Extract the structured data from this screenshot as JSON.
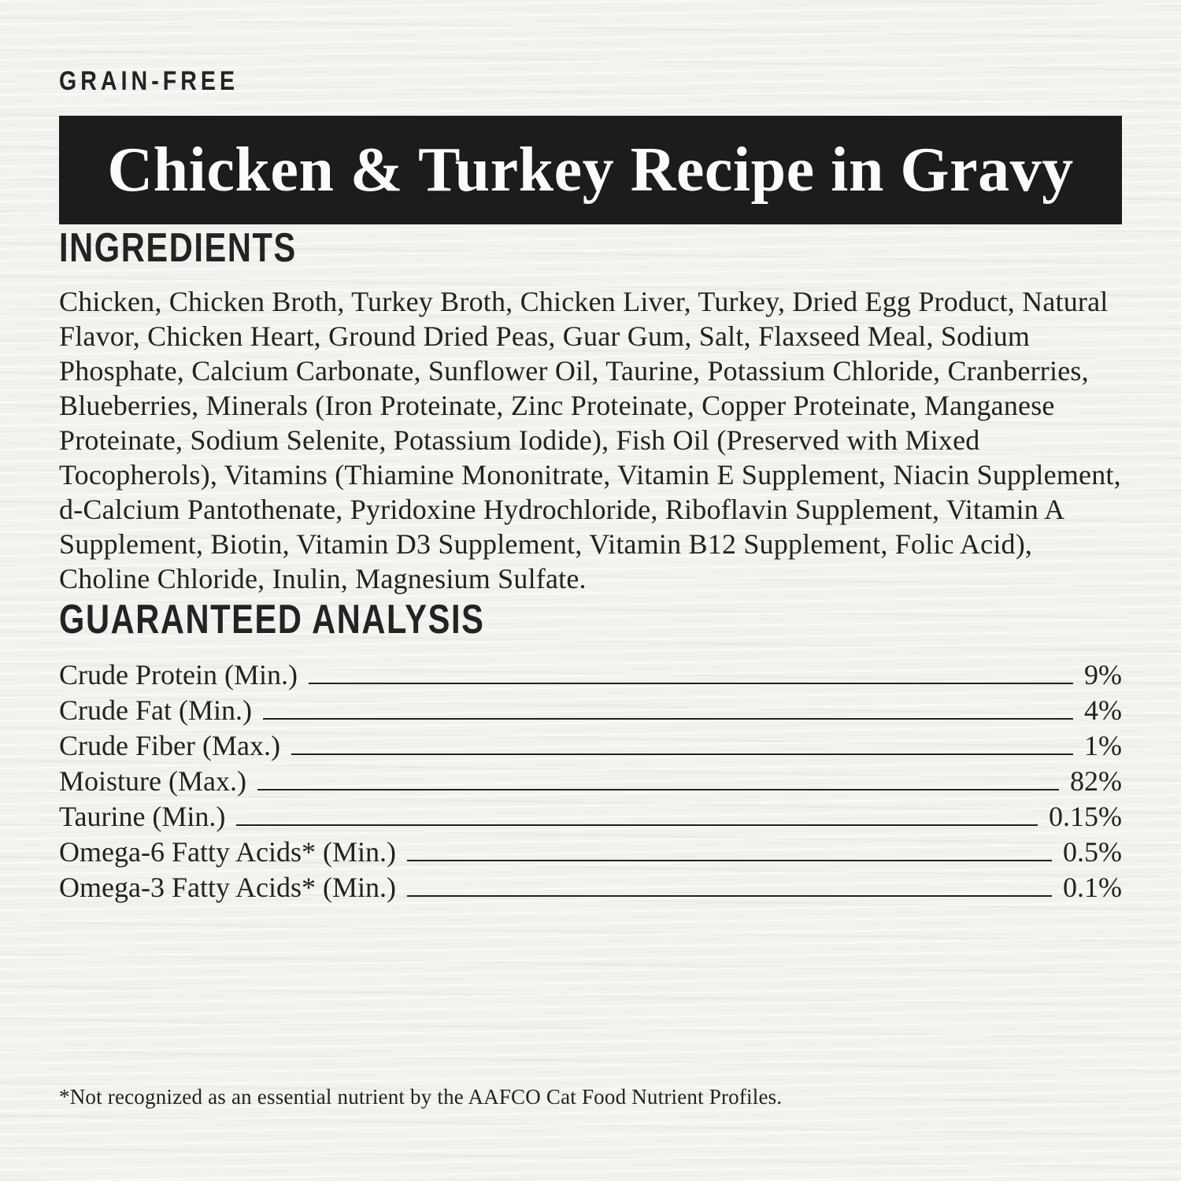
{
  "label": {
    "badge": "GRAIN-FREE",
    "title": "Chicken & Turkey Recipe in Gravy"
  },
  "ingredients": {
    "heading": "INGREDIENTS",
    "text": "Chicken, Chicken Broth, Turkey Broth, Chicken Liver, Turkey, Dried Egg Product, Natural Flavor, Chicken Heart, Ground Dried Peas, Guar Gum, Salt, Flaxseed Meal, Sodium Phosphate, Calcium Carbonate, Sunflower Oil, Taurine, Potassium Chloride, Cranberries, Blueberries, Minerals (Iron Proteinate, Zinc Proteinate, Copper Proteinate, Manganese Proteinate, Sodium Selenite, Potassium Iodide), Fish Oil (Preserved with Mixed Tocopherols), Vitamins (Thiamine Mononitrate, Vitamin E Supplement, Niacin Supplement, d-Calcium Pantothenate, Pyridoxine Hydrochloride, Riboflavin Supplement, Vitamin A Supplement, Biotin, Vitamin D3 Supplement, Vitamin B12 Supplement, Folic Acid), Choline Chloride, Inulin, Magnesium Sulfate."
  },
  "analysis": {
    "heading": "GUARANTEED ANALYSIS",
    "rows": [
      {
        "label": "Crude Protein (Min.)",
        "value": "9%"
      },
      {
        "label": "Crude Fat (Min.)",
        "value": "4%"
      },
      {
        "label": "Crude Fiber (Max.)",
        "value": "1%"
      },
      {
        "label": "Moisture (Max.)",
        "value": "82%"
      },
      {
        "label": "Taurine (Min.)",
        "value": "0.15%"
      },
      {
        "label": "Omega-6 Fatty Acids* (Min.)",
        "value": "0.5%"
      },
      {
        "label": "Omega-3 Fatty Acids* (Min.)",
        "value": "0.1%"
      }
    ]
  },
  "footnote": "*Not recognized as an essential nutrient by the AAFCO Cat Food Nutrient Profiles.",
  "colors": {
    "background": "#f3f2ef",
    "banner_bg": "#1d1c1c",
    "banner_text": "#fbfbfa",
    "text": "#23221f"
  }
}
